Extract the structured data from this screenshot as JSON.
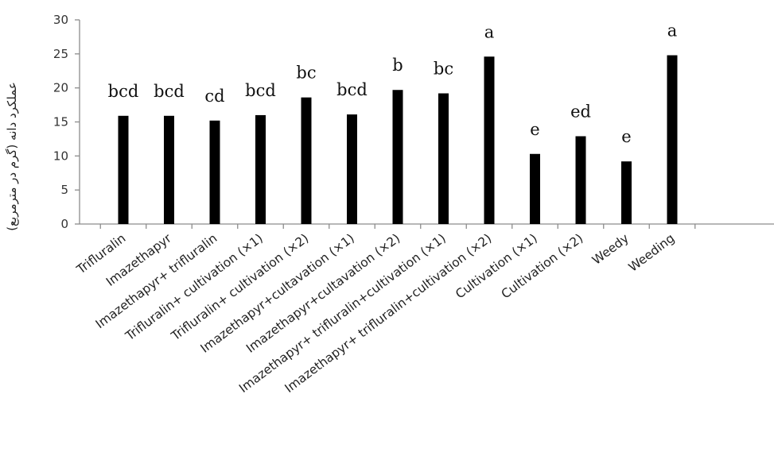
{
  "chart_data": {
    "type": "bar",
    "ylabel": "عملکرد دانه (گرم در مترمربع)",
    "ylim": [
      0,
      30
    ],
    "yticks": [
      0,
      5,
      10,
      15,
      20,
      25,
      30
    ],
    "grid": false,
    "legend": "none",
    "bar_color": "#000000",
    "categories": [
      "Trifluralin",
      "Imazethapyr",
      "Imazethapyr+ trifluralin",
      "Trifluralin+ cultivation (×1)",
      "Trifluralin+ cultivation (×2)",
      "Imazethapyr+cultavation (×1)",
      "Imazethapyr+cultavation (×2)",
      "Imazethapyr+ trifluralin+cultivation (×1)",
      "Imazethapyr+ trifluralin+cultivation (×2)",
      "Cultivation (×1)",
      "Cultivation (×2)",
      "Weedy",
      "Weeding"
    ],
    "values": [
      15.9,
      15.9,
      15.2,
      16.0,
      18.6,
      16.1,
      19.7,
      19.2,
      24.6,
      10.3,
      12.9,
      9.2,
      24.8
    ],
    "significance_letters": [
      "bcd",
      "bcd",
      "cd",
      "bcd",
      "bc",
      "bcd",
      "b",
      "bc",
      "a",
      "e",
      "ed",
      "e",
      "a"
    ]
  }
}
